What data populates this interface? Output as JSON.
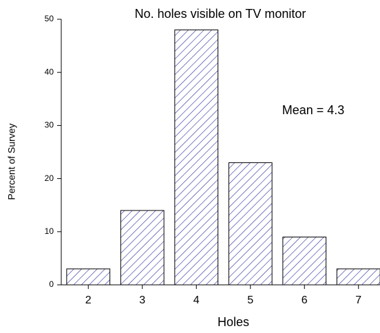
{
  "chart_data": {
    "type": "bar",
    "title": "No. holes visible on TV monitor",
    "annotation": "Mean = 4.3",
    "x_label": "Holes",
    "y_label": "Percent of Survey",
    "categories": [
      "2",
      "3",
      "4",
      "5",
      "6",
      "7"
    ],
    "values": [
      3,
      14,
      48,
      23,
      9,
      3
    ],
    "color": "#2a2aa0",
    "ylim": [
      0,
      50
    ],
    "yticks": [
      0,
      10,
      20,
      30,
      40,
      50
    ],
    "grid": false
  }
}
